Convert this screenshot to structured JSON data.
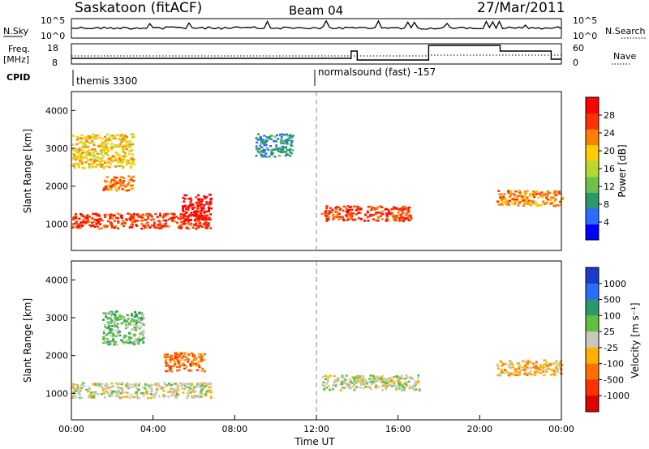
{
  "header": {
    "station": "Saskatoon (fitACF)",
    "beam": "Beam 04",
    "date": "27/Mar/2011"
  },
  "top_panels": {
    "sky_label": "N.Sky",
    "sky_ticks": [
      "10^5",
      "10^0"
    ],
    "search_ticks": [
      "10^5",
      "10^0"
    ],
    "search_label": "N.Search",
    "freq_label_1": "Freq.",
    "freq_label_2": "[MHz]",
    "freq_ticks": [
      "18",
      "8"
    ],
    "nave_ticks": [
      "60",
      "0"
    ],
    "nave_label": "Nave",
    "cpid_label": "CPID",
    "program_1": "themis 3300",
    "program_2": "normalsound (fast) -157"
  },
  "colorbars": {
    "power": {
      "label": "Power [dB]",
      "ticks": [
        "28",
        "24",
        "20",
        "16",
        "12",
        "8",
        "4"
      ],
      "colors": [
        "#0000ff",
        "#2a6cff",
        "#2a9a6a",
        "#6fc04a",
        "#b8d830",
        "#ffcc00",
        "#ff8000",
        "#ff3000",
        "#ff0000"
      ]
    },
    "velocity": {
      "label": "Velocity [m s⁻¹]",
      "ticks": [
        "1000",
        "500",
        "100",
        "25",
        "-25",
        "-100",
        "-500",
        "-1000"
      ],
      "colors": [
        "#1a3cc8",
        "#2a6cff",
        "#2a9a6a",
        "#5fc040",
        "#c8c8c0",
        "#ffb000",
        "#ff7000",
        "#ff3000",
        "#e00000"
      ]
    }
  },
  "chart_data": [
    {
      "type": "heatmap",
      "title": "Power",
      "ylabel": "Slant Range [km]",
      "ylim": [
        300,
        4500
      ],
      "yticks": [
        "4000",
        "3000",
        "2000",
        "1000"
      ],
      "xlim": [
        0,
        24
      ],
      "xticks": [
        "00:00",
        "04:00",
        "08:00",
        "12:00",
        "16:00",
        "20:00",
        "00:00"
      ],
      "value_range_db": [
        0,
        32
      ],
      "regions": [
        {
          "t": [
            0.0,
            6.8
          ],
          "range": [
            900,
            1300
          ],
          "value_db": 28
        },
        {
          "t": [
            0.0,
            3.0
          ],
          "range": [
            2500,
            3400
          ],
          "value_db": 18
        },
        {
          "t": [
            1.5,
            3.0
          ],
          "range": [
            1900,
            2300
          ],
          "value_db": 24
        },
        {
          "t": [
            5.4,
            6.8
          ],
          "range": [
            1100,
            1800
          ],
          "value_db": 30
        },
        {
          "t": [
            12.2,
            16.6
          ],
          "range": [
            1100,
            1500
          ],
          "value_db": 26
        },
        {
          "t": [
            9.0,
            10.8
          ],
          "range": [
            2800,
            3400
          ],
          "value_db": 6
        },
        {
          "t": [
            20.8,
            24.0
          ],
          "range": [
            1500,
            1900
          ],
          "value_db": 22
        }
      ]
    },
    {
      "type": "heatmap",
      "title": "Velocity",
      "ylabel": "Slant Range [km]",
      "ylim": [
        300,
        4500
      ],
      "yticks": [
        "4000",
        "3000",
        "2000",
        "1000"
      ],
      "xlim": [
        0,
        24
      ],
      "xticks": [
        "00:00",
        "04:00",
        "08:00",
        "12:00",
        "16:00",
        "20:00",
        "00:00"
      ],
      "value_range_ms": [
        -1000,
        1000
      ],
      "regions": [
        {
          "t": [
            0.0,
            6.8
          ],
          "range": [
            900,
            1300
          ],
          "value_ms": 0
        },
        {
          "t": [
            1.5,
            3.5
          ],
          "range": [
            2300,
            3200
          ],
          "value_ms": 300
        },
        {
          "t": [
            4.5,
            6.5
          ],
          "range": [
            1600,
            2100
          ],
          "value_ms": -400
        },
        {
          "t": [
            12.2,
            17.0
          ],
          "range": [
            1100,
            1500
          ],
          "value_ms": 0
        },
        {
          "t": [
            20.8,
            24.0
          ],
          "range": [
            1500,
            1900
          ],
          "value_ms": -300
        }
      ]
    }
  ],
  "xaxis": {
    "label": "Time UT",
    "ticks": [
      "00:00",
      "04:00",
      "08:00",
      "12:00",
      "16:00",
      "20:00",
      "00:00"
    ]
  }
}
